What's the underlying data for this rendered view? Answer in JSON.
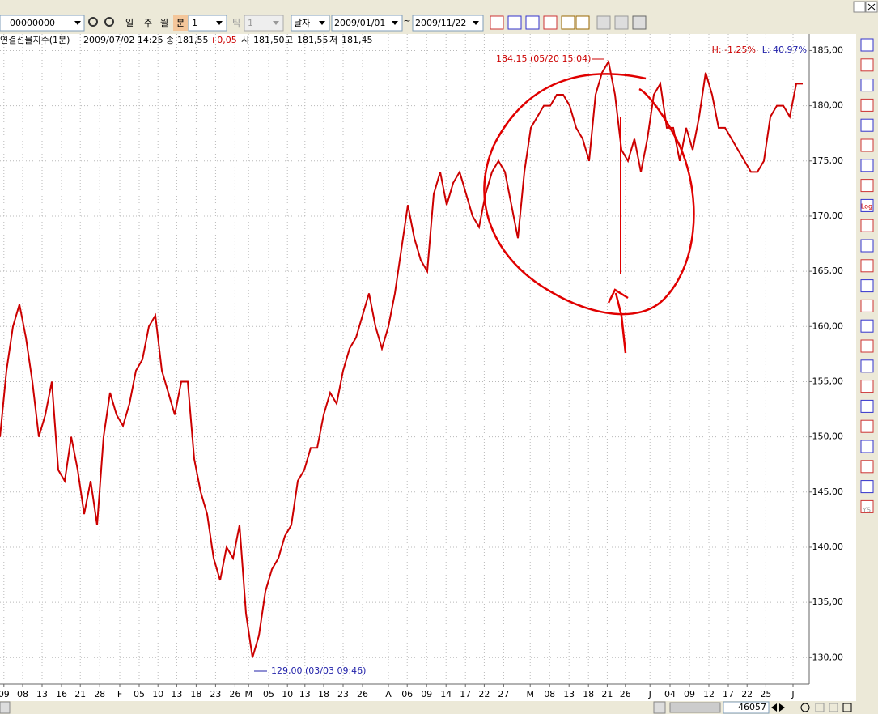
{
  "toolbar": {
    "code": "00000000",
    "periods": [
      "일",
      "주",
      "월",
      "분"
    ],
    "interval": "1",
    "tick_label": "틱",
    "tick_value": "1",
    "date_mode": "날자",
    "start_date": "2009/01/01",
    "separator": "~",
    "end_date": "2009/11/22"
  },
  "info": {
    "name": "연결선물지수(1분)",
    "datetime": "2009/07/02 14:25",
    "close_label": "종",
    "close": "181,55",
    "change": "+0,05",
    "open_label": "시",
    "open": "181,50",
    "high_label": "고",
    "high": "181,55",
    "low_label": "저",
    "low": "181,45"
  },
  "chart_data": {
    "type": "line",
    "series": [
      {
        "color": "#cc0000",
        "values": [
          150,
          156,
          160,
          162,
          159,
          155,
          150,
          152,
          155,
          147,
          146,
          150,
          147,
          143,
          146,
          142,
          150,
          154,
          152,
          151,
          153,
          156,
          157,
          160,
          161,
          156,
          154,
          152,
          155,
          155,
          148,
          145,
          143,
          139,
          137,
          140,
          139,
          142,
          134,
          130,
          132,
          136,
          138,
          139,
          141,
          142,
          146,
          147,
          149,
          149,
          152,
          154,
          153,
          156,
          158,
          159,
          161,
          163,
          160,
          158,
          160,
          163,
          167,
          171,
          168,
          166,
          165,
          172,
          174,
          171,
          173,
          174,
          172,
          170,
          169,
          172,
          174,
          175,
          174,
          171,
          168,
          174,
          178,
          179,
          180,
          180,
          181,
          181,
          180,
          178,
          177,
          175,
          181,
          183,
          184,
          181,
          176,
          175,
          177,
          174,
          177,
          181,
          182,
          178,
          178,
          175,
          178,
          176,
          179,
          183,
          181,
          178,
          178,
          177,
          176,
          175,
          174,
          174,
          175,
          179,
          180,
          180,
          179,
          182,
          182
        ]
      }
    ],
    "xlim": [
      0,
      125
    ],
    "xticks": [
      {
        "value": 0.6,
        "label": "09"
      },
      {
        "value": 3.5,
        "label": "08"
      },
      {
        "value": 6.5,
        "label": "13"
      },
      {
        "value": 9.5,
        "label": "16"
      },
      {
        "value": 12.4,
        "label": "21"
      },
      {
        "value": 15.4,
        "label": "28"
      },
      {
        "value": 18.5,
        "label": "F"
      },
      {
        "value": 21.5,
        "label": "05"
      },
      {
        "value": 24.4,
        "label": "10"
      },
      {
        "value": 27.3,
        "label": "13"
      },
      {
        "value": 30.3,
        "label": "18"
      },
      {
        "value": 33.3,
        "label": "23"
      },
      {
        "value": 36.3,
        "label": "26"
      },
      {
        "value": 38.4,
        "label": "M"
      },
      {
        "value": 41.5,
        "label": "05"
      },
      {
        "value": 44.4,
        "label": "10"
      },
      {
        "value": 47.1,
        "label": "13"
      },
      {
        "value": 50,
        "label": "18"
      },
      {
        "value": 53,
        "label": "23"
      },
      {
        "value": 56,
        "label": "26"
      },
      {
        "value": 60,
        "label": "A"
      },
      {
        "value": 62.9,
        "label": "06"
      },
      {
        "value": 65.9,
        "label": "09"
      },
      {
        "value": 68.9,
        "label": "14"
      },
      {
        "value": 71.9,
        "label": "17"
      },
      {
        "value": 74.8,
        "label": "22"
      },
      {
        "value": 77.8,
        "label": "27"
      },
      {
        "value": 81.9,
        "label": "M"
      },
      {
        "value": 84.9,
        "label": "08"
      },
      {
        "value": 87.9,
        "label": "13"
      },
      {
        "value": 90.9,
        "label": "18"
      },
      {
        "value": 93.8,
        "label": "21"
      },
      {
        "value": 96.6,
        "label": "26"
      },
      {
        "value": 100.4,
        "label": "J"
      },
      {
        "value": 103.5,
        "label": "04"
      },
      {
        "value": 106.5,
        "label": "09"
      },
      {
        "value": 109.5,
        "label": "12"
      },
      {
        "value": 112.5,
        "label": "17"
      },
      {
        "value": 115.4,
        "label": "22"
      },
      {
        "value": 118.3,
        "label": "25"
      },
      {
        "value": 122.5,
        "label": "J"
      }
    ],
    "ylim": [
      127.6,
      186.5
    ],
    "yticks": [
      {
        "value": 130,
        "label": "130,00"
      },
      {
        "value": 135,
        "label": "135,00"
      },
      {
        "value": 140,
        "label": "140,00"
      },
      {
        "value": 145,
        "label": "145,00"
      },
      {
        "value": 150,
        "label": "150,00"
      },
      {
        "value": 155,
        "label": "155,00"
      },
      {
        "value": 160,
        "label": "160,00"
      },
      {
        "value": 165,
        "label": "165,00"
      },
      {
        "value": 170,
        "label": "170,00"
      },
      {
        "value": 175,
        "label": "175,00"
      },
      {
        "value": 180,
        "label": "180,00"
      },
      {
        "value": 185,
        "label": "185,00"
      }
    ],
    "grid": true,
    "max_note": "184,15 (05/20 15:04)",
    "min_note": "129,00 (03/03 09:46)",
    "high_ratio": "H: -1,25%",
    "low_ratio": "L: 40,97%"
  },
  "sidebar": {
    "log": "Log",
    "ys": "YS"
  },
  "scroll": {
    "count": "46057"
  }
}
